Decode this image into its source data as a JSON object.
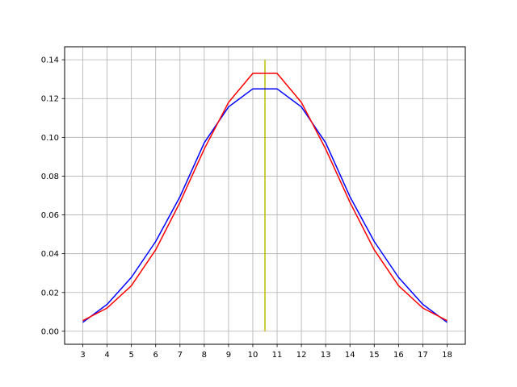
{
  "chart_data": {
    "type": "line",
    "title": "",
    "xlabel": "",
    "ylabel": "",
    "xlim": [
      2.25,
      18.75
    ],
    "ylim": [
      -0.0067,
      0.1467
    ],
    "grid": true,
    "x_ticks": [
      3,
      4,
      5,
      6,
      7,
      8,
      9,
      10,
      11,
      12,
      13,
      14,
      15,
      16,
      17,
      18
    ],
    "y_ticks": [
      0.0,
      0.02,
      0.04,
      0.06,
      0.08,
      0.1,
      0.12,
      0.14
    ],
    "y_tick_labels": [
      "0.00",
      "0.02",
      "0.04",
      "0.06",
      "0.08",
      "0.10",
      "0.12",
      "0.14"
    ],
    "x_tick_labels": [
      "3",
      "4",
      "5",
      "6",
      "7",
      "8",
      "9",
      "10",
      "11",
      "12",
      "13",
      "14",
      "15",
      "16",
      "17",
      "18"
    ],
    "series": [
      {
        "color": "#0000ff",
        "x": [
          3,
          4,
          5,
          6,
          7,
          8,
          9,
          10,
          11,
          12,
          13,
          14,
          15,
          16,
          17,
          18
        ],
        "values": [
          0.0046,
          0.0139,
          0.0278,
          0.0463,
          0.0694,
          0.0972,
          0.1157,
          0.125,
          0.125,
          0.1157,
          0.0972,
          0.0694,
          0.0463,
          0.0278,
          0.0139,
          0.0046
        ]
      },
      {
        "color": "#ff0000",
        "x": [
          3,
          4,
          5,
          6,
          7,
          8,
          9,
          10,
          11,
          12,
          13,
          14,
          15,
          16,
          17,
          18
        ],
        "values": [
          0.0055,
          0.012,
          0.0235,
          0.042,
          0.0665,
          0.094,
          0.118,
          0.133,
          0.133,
          0.118,
          0.094,
          0.0665,
          0.042,
          0.0235,
          0.012,
          0.0055
        ]
      }
    ],
    "vertical_line": {
      "color": "#bfbf00",
      "x": 10.5,
      "y_from": 0.0,
      "y_to": 0.14
    }
  }
}
